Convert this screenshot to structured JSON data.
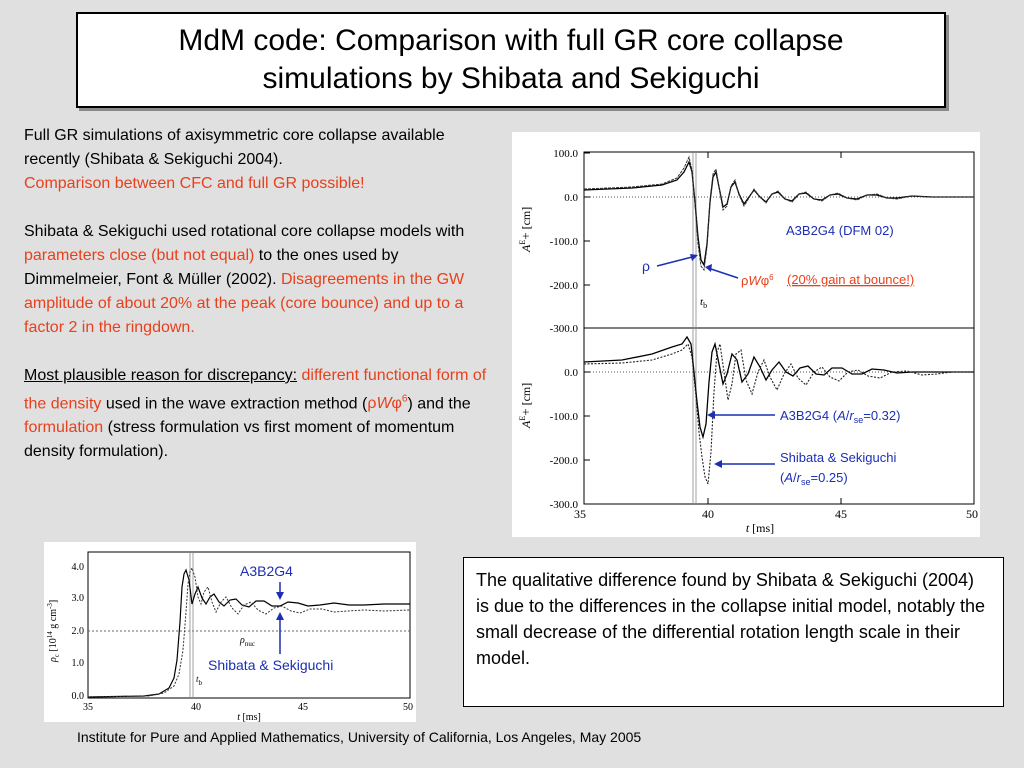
{
  "title": {
    "line1": "MdM code: Comparison with full GR core collapse",
    "line2": "simulations by Shibata and Sekiguchi"
  },
  "body": {
    "p1": {
      "t1": "Full GR simulations of axisymmetric core collapse available recently (Shibata & Sekiguchi 2004).",
      "t2": "Comparison between CFC and full GR possible!"
    },
    "p2": {
      "t1": "Shibata & Sekiguchi used rotational core collapse models with",
      "t2": "parameters close (but not equal)",
      "t3": "to the ones used by Dimmelmeier, Font & Müller (2002).",
      "t4": "Disagreements in the GW amplitude of about 20% at the peak (core bounce) and up to a factor 2 in the ringdown."
    },
    "p3": {
      "t1": "Most plausible reason for discrepancy:",
      "t2": "different functional form of the density",
      "t3": "used in the wave extraction method (",
      "rho": "ρ",
      "W": "W",
      "phi": "φ",
      "six": "6",
      "t4": ") and the",
      "t5": "formulation",
      "t6": "(stress formulation vs first moment of momentum density formulation)."
    }
  },
  "gw_plot": {
    "top_y_ticks": [
      "100.0",
      "0.0",
      "-100.0",
      "-200.0",
      "-300.0"
    ],
    "bottom_y_ticks": [
      "0.0",
      "-100.0",
      "-200.0",
      "-300.0"
    ],
    "x_ticks": [
      "35",
      "40",
      "45",
      "50"
    ],
    "ylabel_A": "A",
    "ylabel_sup": "E",
    "ylabel_plus": "+",
    "ylabel_unit": "[cm]",
    "xlabel_t": "t",
    "xlabel_unit": "[ms]",
    "tb_t": "t",
    "tb_b": "b",
    "label_dfm": "A3B2G4 (DFM 02)",
    "label_rho": "ρ",
    "label_rhoW_rho": "ρ",
    "label_rhoW_W": "W",
    "label_rhoW_phi": "φ",
    "label_rhoW_six": "6",
    "label_gain": "(20% gain at bounce!)",
    "label_a3_main": "A3B2G4 (",
    "label_a3_A": "A",
    "label_a3_slash": "/",
    "label_a3_r": "r",
    "label_a3_se": "se",
    "label_a3_val": "=0.32)",
    "label_ss_1": "Shibata & Sekiguchi",
    "label_ss_open": "(",
    "label_ss_A": "A",
    "label_ss_slash": "/",
    "label_ss_r": "r",
    "label_ss_se": "se",
    "label_ss_val": "=0.25)"
  },
  "density_plot": {
    "y_ticks": [
      "4.0",
      "3.0",
      "2.0",
      "1.0",
      "0.0"
    ],
    "x_ticks": [
      "35",
      "40",
      "45",
      "50"
    ],
    "ylabel_rho": "ρ",
    "ylabel_c": "c",
    "ylabel_unit": "[10",
    "ylabel_exp": "14",
    "ylabel_rest": " g cm",
    "ylabel_exp2": "-3",
    "ylabel_close": "]",
    "xlabel_t": "t",
    "xlabel_unit": "[ms]",
    "rho_nuc_rho": "ρ",
    "rho_nuc_sub": "nuc",
    "tb_t": "t",
    "tb_b": "b",
    "label_a3": "A3B2G4",
    "label_ss": "Shibata & Sekiguchi"
  },
  "conclusion": "The qualitative difference found by Shibata & Sekiguchi (2004) is due to the differences in the collapse initial model, notably the small decrease of the differential rotation length scale in their model.",
  "footer": "Institute for Pure and Applied Mathematics, University of California, Los Angeles, May 2005",
  "colors": {
    "background": "#e0e0e0",
    "accent_red": "#e8401c",
    "annotation_blue": "#1c2fb4"
  }
}
